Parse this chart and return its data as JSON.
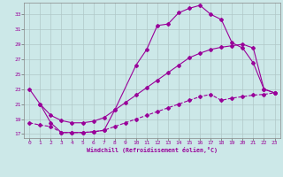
{
  "xlabel": "Windchill (Refroidissement éolien,°C)",
  "bg_color": "#cce8e8",
  "line_color": "#990099",
  "grid_color": "#b0c8c8",
  "xlim": [
    -0.5,
    23.5
  ],
  "ylim": [
    16.5,
    34.5
  ],
  "yticks": [
    17,
    19,
    21,
    23,
    25,
    27,
    29,
    31,
    33
  ],
  "xticks": [
    0,
    1,
    2,
    3,
    4,
    5,
    6,
    7,
    8,
    9,
    10,
    11,
    12,
    13,
    14,
    15,
    16,
    17,
    18,
    19,
    20,
    21,
    22,
    23
  ],
  "line1_x": [
    1,
    2,
    3,
    4,
    5,
    6,
    7,
    8,
    10,
    11,
    12,
    13,
    14,
    15,
    16,
    17,
    18,
    19,
    20,
    21,
    22,
    23
  ],
  "line1_y": [
    21,
    18.5,
    17.2,
    17.2,
    17.2,
    17.3,
    17.5,
    20.2,
    26.2,
    28.3,
    31.5,
    31.7,
    33.2,
    33.8,
    34.2,
    33.0,
    32.3,
    29.2,
    28.5,
    26.5,
    23.0,
    22.5
  ],
  "line2_x": [
    0,
    1,
    2,
    3,
    4,
    5,
    6,
    7,
    8,
    9,
    10,
    11,
    12,
    13,
    14,
    15,
    16,
    17,
    18,
    19,
    20,
    21,
    22,
    23
  ],
  "line2_y": [
    23.0,
    21.0,
    19.5,
    18.8,
    18.5,
    18.5,
    18.7,
    19.2,
    20.2,
    21.2,
    22.2,
    23.2,
    24.2,
    25.2,
    26.2,
    27.2,
    27.8,
    28.3,
    28.6,
    28.8,
    29.0,
    28.5,
    23.0,
    22.5
  ],
  "line3_x": [
    0,
    1,
    2,
    3,
    4,
    5,
    6,
    7,
    8,
    9,
    10,
    11,
    12,
    13,
    14,
    15,
    16,
    17,
    18,
    19,
    20,
    21,
    22,
    23
  ],
  "line3_y": [
    18.5,
    18.2,
    18.0,
    17.2,
    17.2,
    17.2,
    17.3,
    17.5,
    18.0,
    18.5,
    19.0,
    19.5,
    20.0,
    20.5,
    21.0,
    21.5,
    22.0,
    22.3,
    21.5,
    21.8,
    22.0,
    22.2,
    22.3,
    22.5
  ],
  "figwidth": 3.2,
  "figheight": 2.0,
  "dpi": 100
}
